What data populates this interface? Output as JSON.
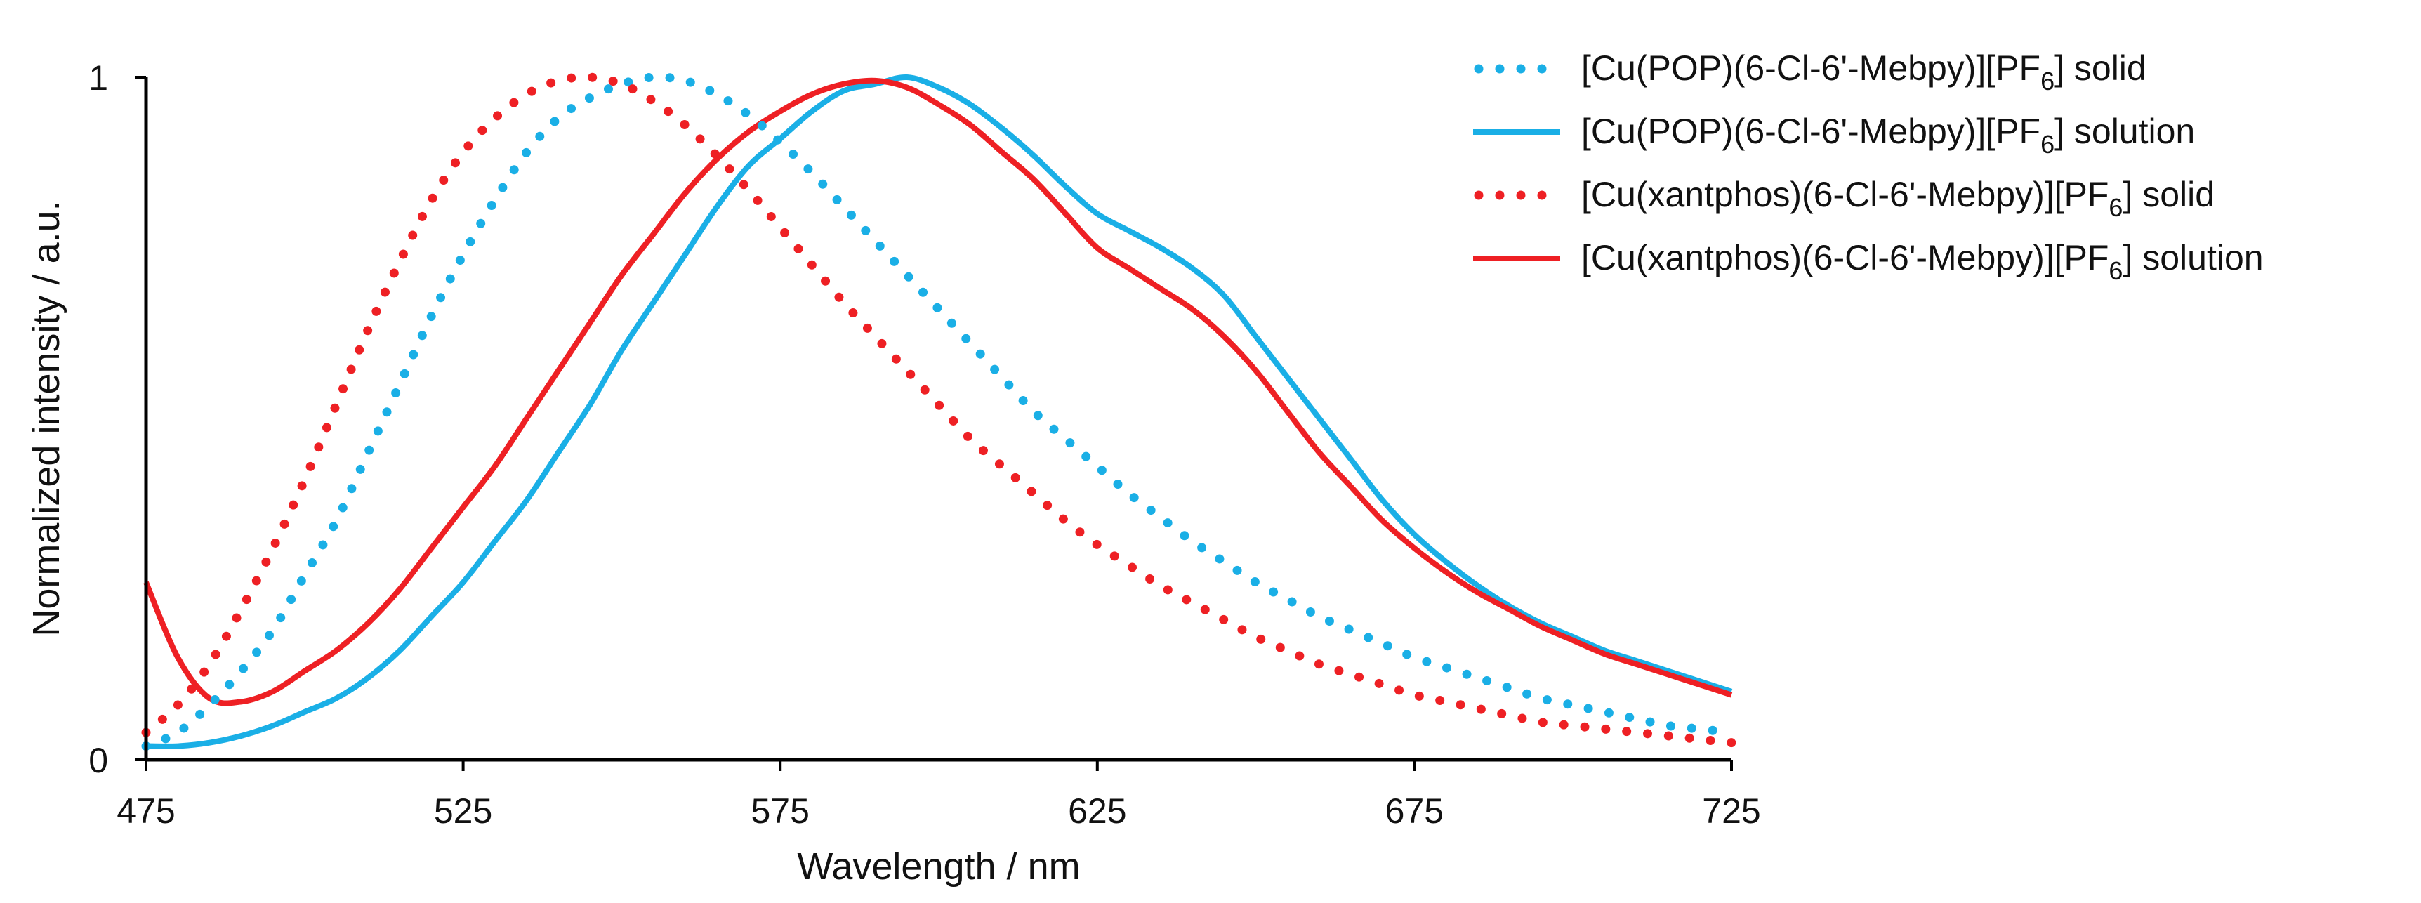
{
  "chart_data": {
    "type": "line",
    "title": "",
    "xlabel": "Wavelength / nm",
    "ylabel": "Normalized intensity / a.u.",
    "xlim": [
      475,
      725
    ],
    "ylim": [
      0,
      1
    ],
    "x_ticks": [
      475,
      525,
      575,
      625,
      675,
      725
    ],
    "x_tick_labels": [
      "475",
      "525",
      "575",
      "625",
      "675",
      "725"
    ],
    "y_ticks": [
      0,
      1
    ],
    "y_tick_labels": [
      "0",
      "1"
    ],
    "grid": false,
    "legend_position": "top-right",
    "series": [
      {
        "name": "[Cu(POP)(6-Cl-6'-Mebpy)][PF6] solid",
        "label_main": "[Cu(POP)(6-Cl-6'-Mebpy)][PF",
        "label_sub": "6",
        "label_tail": "] solid",
        "color": "#1AAFE6",
        "style": "dotted",
        "x": [
          475,
          480,
          485,
          490,
          495,
          500,
          505,
          510,
          515,
          520,
          525,
          530,
          535,
          540,
          545,
          550,
          555,
          560,
          565,
          570,
          575,
          580,
          585,
          590,
          595,
          600,
          605,
          610,
          615,
          620,
          625,
          630,
          635,
          640,
          645,
          650,
          655,
          660,
          665,
          670,
          675,
          680,
          685,
          690,
          695,
          700,
          705,
          710,
          715,
          720,
          725
        ],
        "y": [
          0.02,
          0.04,
          0.08,
          0.13,
          0.19,
          0.27,
          0.35,
          0.45,
          0.55,
          0.65,
          0.74,
          0.82,
          0.89,
          0.94,
          0.97,
          0.99,
          1.0,
          0.995,
          0.975,
          0.945,
          0.905,
          0.86,
          0.81,
          0.76,
          0.71,
          0.66,
          0.61,
          0.56,
          0.51,
          0.47,
          0.43,
          0.39,
          0.355,
          0.32,
          0.29,
          0.26,
          0.235,
          0.21,
          0.19,
          0.17,
          0.15,
          0.135,
          0.12,
          0.105,
          0.09,
          0.08,
          0.07,
          0.06,
          0.05,
          0.045,
          0.04
        ]
      },
      {
        "name": "[Cu(POP)(6-Cl-6'-Mebpy)][PF6] solution",
        "label_main": "[Cu(POP)(6-Cl-6'-Mebpy)][PF",
        "label_sub": "6",
        "label_tail": "] solution",
        "color": "#1AAFE6",
        "style": "solid",
        "x": [
          475,
          480,
          485,
          490,
          495,
          500,
          505,
          510,
          515,
          520,
          525,
          530,
          535,
          540,
          545,
          550,
          555,
          560,
          565,
          570,
          575,
          580,
          585,
          590,
          595,
          600,
          605,
          610,
          615,
          620,
          625,
          630,
          635,
          640,
          645,
          650,
          655,
          660,
          665,
          670,
          675,
          680,
          685,
          690,
          695,
          700,
          705,
          710,
          715,
          720,
          725
        ],
        "y": [
          0.02,
          0.02,
          0.025,
          0.035,
          0.05,
          0.07,
          0.09,
          0.12,
          0.16,
          0.21,
          0.26,
          0.32,
          0.38,
          0.45,
          0.52,
          0.6,
          0.67,
          0.74,
          0.81,
          0.87,
          0.91,
          0.95,
          0.98,
          0.99,
          1.0,
          0.985,
          0.96,
          0.925,
          0.885,
          0.84,
          0.8,
          0.775,
          0.75,
          0.72,
          0.68,
          0.62,
          0.56,
          0.5,
          0.44,
          0.38,
          0.33,
          0.29,
          0.255,
          0.225,
          0.2,
          0.18,
          0.16,
          0.145,
          0.13,
          0.115,
          0.1
        ]
      },
      {
        "name": "[Cu(xantphos)(6-Cl-6'-Mebpy)][PF6] solid",
        "label_main": "[Cu(xantphos)(6-Cl-6'-Mebpy)][PF",
        "label_sub": "6",
        "label_tail": "] solid",
        "color": "#EE2024",
        "style": "dotted",
        "x": [
          475,
          480,
          485,
          490,
          495,
          500,
          505,
          510,
          515,
          520,
          525,
          530,
          535,
          540,
          545,
          550,
          555,
          560,
          565,
          570,
          575,
          580,
          585,
          590,
          595,
          600,
          605,
          610,
          615,
          620,
          625,
          630,
          635,
          640,
          645,
          650,
          655,
          660,
          665,
          670,
          675,
          680,
          685,
          690,
          695,
          700,
          705,
          710,
          715,
          720,
          725
        ],
        "y": [
          0.04,
          0.08,
          0.14,
          0.22,
          0.31,
          0.41,
          0.52,
          0.63,
          0.73,
          0.82,
          0.89,
          0.94,
          0.975,
          0.995,
          1.0,
          0.99,
          0.965,
          0.93,
          0.885,
          0.835,
          0.78,
          0.725,
          0.67,
          0.62,
          0.57,
          0.52,
          0.47,
          0.43,
          0.39,
          0.35,
          0.315,
          0.285,
          0.255,
          0.23,
          0.205,
          0.18,
          0.16,
          0.14,
          0.125,
          0.11,
          0.095,
          0.085,
          0.075,
          0.065,
          0.055,
          0.05,
          0.045,
          0.04,
          0.035,
          0.03,
          0.025
        ]
      },
      {
        "name": "[Cu(xantphos)(6-Cl-6'-Mebpy)][PF6] solution",
        "label_main": "[Cu(xantphos)(6-Cl-6'-Mebpy)][PF",
        "label_sub": "6",
        "label_tail": "] solution",
        "color": "#EE2024",
        "style": "solid",
        "x": [
          475,
          480,
          485,
          490,
          495,
          500,
          505,
          510,
          515,
          520,
          525,
          530,
          535,
          540,
          545,
          550,
          555,
          560,
          565,
          570,
          575,
          580,
          585,
          590,
          595,
          600,
          605,
          610,
          615,
          620,
          625,
          630,
          635,
          640,
          645,
          650,
          655,
          660,
          665,
          670,
          675,
          680,
          685,
          690,
          695,
          700,
          705,
          710,
          715,
          720,
          725
        ],
        "y": [
          0.26,
          0.15,
          0.09,
          0.085,
          0.1,
          0.13,
          0.16,
          0.2,
          0.25,
          0.31,
          0.37,
          0.43,
          0.5,
          0.57,
          0.64,
          0.71,
          0.77,
          0.83,
          0.88,
          0.92,
          0.95,
          0.975,
          0.99,
          0.995,
          0.985,
          0.96,
          0.93,
          0.89,
          0.85,
          0.8,
          0.75,
          0.72,
          0.69,
          0.66,
          0.62,
          0.57,
          0.51,
          0.45,
          0.4,
          0.35,
          0.31,
          0.275,
          0.245,
          0.22,
          0.195,
          0.175,
          0.155,
          0.14,
          0.125,
          0.11,
          0.095
        ]
      }
    ]
  }
}
